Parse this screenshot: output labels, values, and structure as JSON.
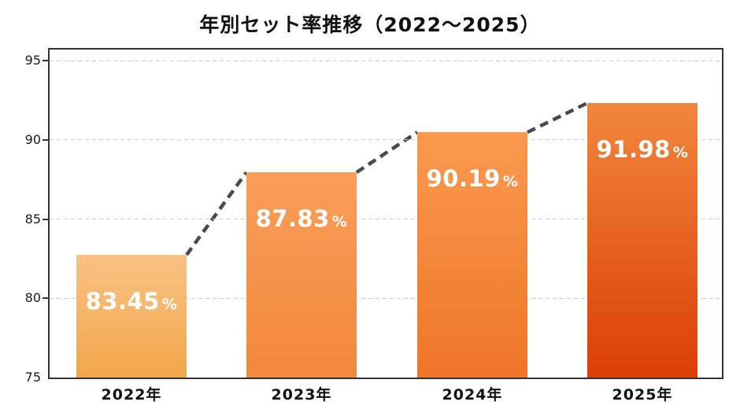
{
  "title": "年別セット率推移（2022〜2025）",
  "chart_data": {
    "type": "bar",
    "title": "年別セット率推移（2022〜2025）",
    "categories": [
      "2022年",
      "2023年",
      "2024年",
      "2025年"
    ],
    "values": [
      83.45,
      87.83,
      90.19,
      91.98
    ],
    "values_as_drawn": [
      82.74,
      87.95,
      90.48,
      92.32
    ],
    "unit": "%",
    "value_decimals": 2,
    "ylim": [
      75,
      95.7
    ],
    "yticks": [
      75,
      80,
      85,
      90,
      95
    ],
    "grid": "horizontal-dashed",
    "legend": "none",
    "bar_gradients": [
      [
        "#F8C285",
        "#F2A64A"
      ],
      [
        "#F99E59",
        "#F2873E"
      ],
      [
        "#FA9A4F",
        "#EE7527"
      ],
      [
        "#F0873C",
        "#DC3E06"
      ]
    ],
    "connector_color": "#4a4a4a",
    "axis_color": "#333333",
    "grid_color": "#cccccc",
    "value_label_color": "#ffffff"
  }
}
